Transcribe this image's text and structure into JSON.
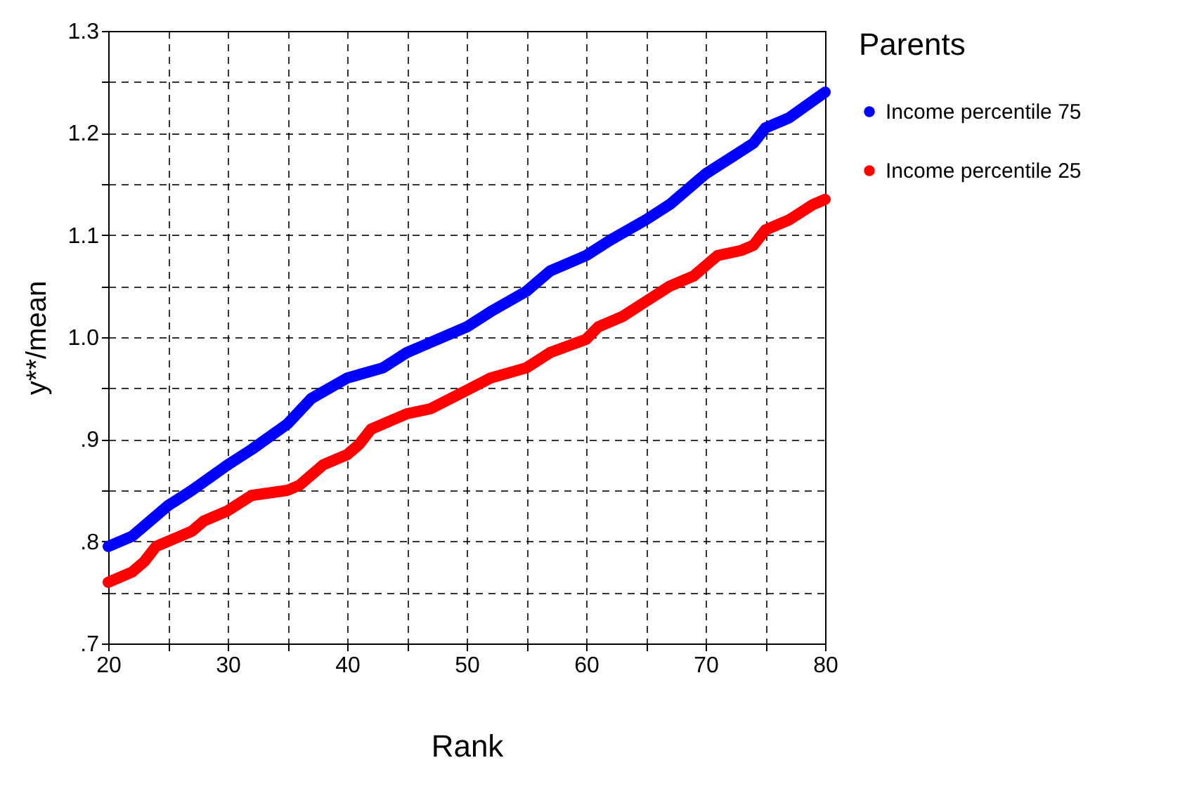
{
  "chart_data": {
    "type": "line",
    "xlabel": "Rank",
    "ylabel": "y**/mean",
    "legend_title": "Parents",
    "legend": "right",
    "grid": true,
    "marker": "circle",
    "xlim": [
      20,
      80
    ],
    "ylim": [
      0.7,
      1.3
    ],
    "xticks": [
      20,
      {
        "value": 25,
        "label": null
      },
      30,
      {
        "value": 35,
        "label": null
      },
      40,
      {
        "value": 45,
        "label": null
      },
      50,
      {
        "value": 55,
        "label": null
      },
      60,
      {
        "value": 65,
        "label": null
      },
      70,
      {
        "value": 75,
        "label": null
      },
      80
    ],
    "yticks": [
      {
        "value": 0.7,
        "label": ".7"
      },
      {
        "value": 0.75,
        "label": null
      },
      {
        "value": 0.8,
        "label": ".8"
      },
      {
        "value": 0.85,
        "label": null
      },
      {
        "value": 0.9,
        "label": ".9"
      },
      {
        "value": 0.95,
        "label": null
      },
      {
        "value": 1.0,
        "label": "1.0"
      },
      {
        "value": 1.05,
        "label": null
      },
      {
        "value": 1.1,
        "label": "1.1"
      },
      {
        "value": 1.15,
        "label": null
      },
      {
        "value": 1.2,
        "label": "1.2"
      },
      {
        "value": 1.25,
        "label": null
      },
      {
        "value": 1.3,
        "label": "1.3"
      }
    ],
    "series": [
      {
        "name": "Income percentile 75",
        "color": "#0000ff",
        "x": [
          20,
          22,
          23,
          25,
          27,
          30,
          32,
          35,
          37,
          40,
          43,
          45,
          47,
          50,
          52,
          55,
          57,
          60,
          62,
          65,
          67,
          70,
          72,
          74,
          75,
          77,
          80
        ],
        "values": [
          0.795,
          0.805,
          0.815,
          0.835,
          0.85,
          0.875,
          0.89,
          0.915,
          0.94,
          0.96,
          0.97,
          0.985,
          0.995,
          1.01,
          1.025,
          1.045,
          1.065,
          1.08,
          1.095,
          1.115,
          1.13,
          1.16,
          1.175,
          1.19,
          1.205,
          1.215,
          1.24
        ]
      },
      {
        "name": "Income percentile 25",
        "color": "#ff0000",
        "x": [
          20,
          22,
          23,
          24,
          25,
          27,
          28,
          30,
          32,
          35,
          36,
          38,
          40,
          41,
          42,
          45,
          47,
          50,
          52,
          55,
          57,
          60,
          61,
          63,
          65,
          67,
          69,
          70,
          71,
          73,
          74,
          75,
          77,
          79,
          80
        ],
        "values": [
          0.76,
          0.77,
          0.78,
          0.795,
          0.8,
          0.81,
          0.82,
          0.83,
          0.845,
          0.85,
          0.855,
          0.875,
          0.885,
          0.895,
          0.91,
          0.925,
          0.93,
          0.948,
          0.96,
          0.97,
          0.985,
          0.998,
          1.01,
          1.02,
          1.035,
          1.05,
          1.06,
          1.07,
          1.08,
          1.085,
          1.09,
          1.105,
          1.115,
          1.13,
          1.135
        ]
      }
    ]
  }
}
